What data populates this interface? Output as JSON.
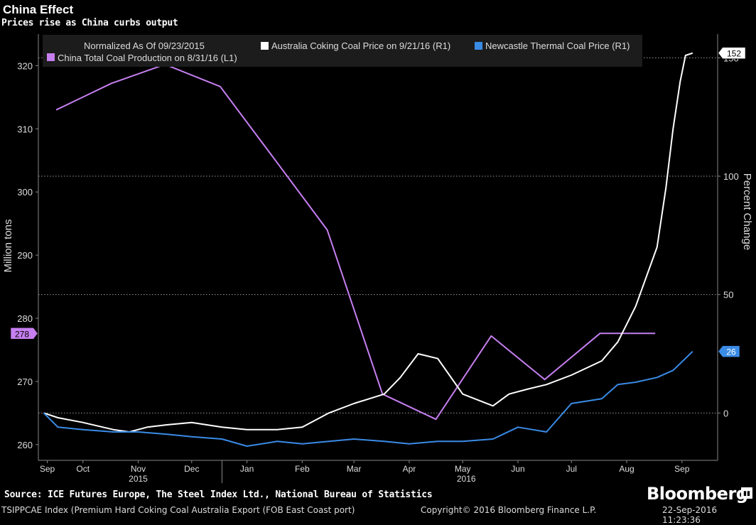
{
  "header": {
    "title": "China Effect",
    "subtitle": "Prices rise as China curbs output"
  },
  "footer": {
    "source": "Source: ICE Futures Europe, The Steel Index Ltd., National Bureau of Statistics",
    "brand": "Bloomberg",
    "ticker": "TSIPPCAE Index (Premium Hard Coking Coal Australia Export (FOB East Coast port)",
    "copyright": "Copyright© 2016 Bloomberg Finance L.P.",
    "timestamp": "22-Sep-2016 11:23:36"
  },
  "colors": {
    "china": "#c67ff0",
    "coking": "#ffffff",
    "newcastle": "#3a8be6",
    "grid": "#9a9a9a",
    "legend_bg": "#1c1c1c"
  },
  "chart_data": {
    "type": "line",
    "legend": {
      "header": "Normalized As Of 09/23/2015",
      "placement": "top"
    },
    "x_axis": {
      "month_labels": [
        "Sep",
        "Oct",
        "Nov",
        "Dec",
        "Jan",
        "Feb",
        "Mar",
        "Apr",
        "May",
        "Jun",
        "Jul",
        "Aug",
        "Sep"
      ],
      "month_dates": [
        "2015-09-25",
        "2015-10-15",
        "2015-11-15",
        "2015-12-15",
        "2016-01-15",
        "2016-02-15",
        "2016-03-15",
        "2016-04-15",
        "2016-05-15",
        "2016-06-15",
        "2016-07-15",
        "2016-08-15",
        "2016-09-15"
      ],
      "year_labels": [
        {
          "label": "2015",
          "date": "2015-11-15"
        },
        {
          "label": "2016",
          "date": "2016-05-17"
        }
      ],
      "year_separator_date": "2016-01-01",
      "range": [
        "2015-09-20",
        "2016-10-05"
      ]
    },
    "y_left": {
      "label": "Million tons",
      "range": [
        257.5,
        325
      ],
      "ticks": [
        260,
        270,
        280,
        290,
        300,
        310,
        320
      ],
      "last_value_label": "278"
    },
    "y_right": {
      "label": "Percent Change",
      "range": [
        -20,
        160
      ],
      "ticks": [
        0,
        50,
        100,
        150
      ],
      "gridlines": [
        0,
        50,
        100,
        150
      ],
      "last_value_labels": {
        "coking": "152",
        "newcastle": "26"
      }
    },
    "series": [
      {
        "name": "China Total Coal Production on 8/31/16 (L1)",
        "axis": "left",
        "x": [
          "2015-09-30",
          "2015-10-31",
          "2015-11-30",
          "2015-12-31",
          "2016-01-31",
          "2016-02-29",
          "2016-03-31",
          "2016-04-30",
          "2016-05-31",
          "2016-06-30",
          "2016-07-31",
          "2016-08-31"
        ],
        "y": [
          313,
          317.2,
          320.2,
          316.7,
          305,
          294,
          268,
          264,
          277.2,
          270.3,
          277.6,
          277.6
        ]
      },
      {
        "name": "Australia Coking Coal Price on 9/21/16 (R1)",
        "axis": "right",
        "x": [
          "2015-09-23",
          "2015-10-01",
          "2015-10-15",
          "2015-11-01",
          "2015-11-10",
          "2015-11-20",
          "2015-12-01",
          "2015-12-15",
          "2016-01-01",
          "2016-01-15",
          "2016-02-01",
          "2016-02-15",
          "2016-03-01",
          "2016-03-15",
          "2016-04-01",
          "2016-04-10",
          "2016-04-20",
          "2016-05-01",
          "2016-05-15",
          "2016-06-01",
          "2016-06-10",
          "2016-06-20",
          "2016-07-01",
          "2016-07-15",
          "2016-08-01",
          "2016-08-10",
          "2016-08-20",
          "2016-09-01",
          "2016-09-06",
          "2016-09-10",
          "2016-09-14",
          "2016-09-17",
          "2016-09-21"
        ],
        "y": [
          0,
          -2,
          -4,
          -7,
          -8,
          -6,
          -5,
          -4,
          -6,
          -7,
          -7,
          -6,
          0,
          4,
          8,
          15,
          25,
          23,
          8,
          3,
          8,
          10,
          12,
          16,
          22,
          30,
          45,
          70,
          95,
          120,
          140,
          151,
          152
        ]
      },
      {
        "name": "Newcastle Thermal Coal Price (R1)",
        "axis": "right",
        "x": [
          "2015-09-23",
          "2015-10-01",
          "2015-10-15",
          "2015-11-01",
          "2015-11-15",
          "2015-12-01",
          "2015-12-15",
          "2016-01-01",
          "2016-01-15",
          "2016-02-01",
          "2016-02-15",
          "2016-03-01",
          "2016-03-15",
          "2016-04-01",
          "2016-04-15",
          "2016-05-01",
          "2016-05-15",
          "2016-06-01",
          "2016-06-15",
          "2016-07-01",
          "2016-07-15",
          "2016-08-01",
          "2016-08-10",
          "2016-08-20",
          "2016-09-01",
          "2016-09-10",
          "2016-09-21"
        ],
        "y": [
          0,
          -6,
          -7,
          -8,
          -8,
          -9,
          -10,
          -11,
          -14,
          -12,
          -13,
          -12,
          -11,
          -12,
          -13,
          -12,
          -12,
          -11,
          -6,
          -8,
          4,
          6,
          12,
          13,
          15,
          18,
          26
        ]
      }
    ]
  }
}
